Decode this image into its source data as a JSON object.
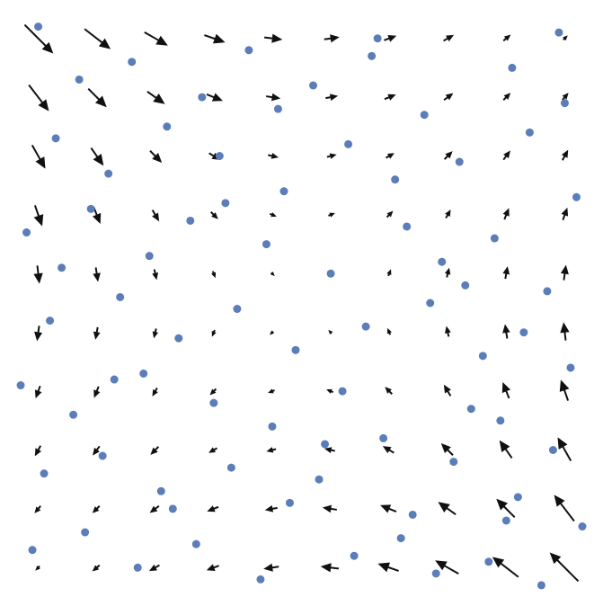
{
  "chart_data": [
    {
      "type": "quiver",
      "color": "#111111",
      "xlim": [
        0,
        1
      ],
      "ylim": [
        0,
        1
      ],
      "x": [
        0.05,
        0.15,
        0.25,
        0.35,
        0.45,
        0.55,
        0.65,
        0.75,
        0.85,
        0.95
      ],
      "y": [
        0.05,
        0.15,
        0.25,
        0.35,
        0.45,
        0.55,
        0.65,
        0.75,
        0.85,
        0.95
      ],
      "u": [
        [
          -0.003,
          -0.006,
          -0.009,
          -0.011,
          -0.014,
          -0.017,
          -0.02,
          -0.023,
          -0.026,
          -0.029
        ],
        [
          -0.005,
          -0.006,
          -0.008,
          -0.01,
          -0.011,
          -0.013,
          -0.015,
          -0.017,
          -0.018,
          -0.02
        ],
        [
          -0.005,
          -0.006,
          -0.007,
          -0.007,
          -0.008,
          -0.009,
          -0.01,
          -0.011,
          -0.012,
          -0.013
        ],
        [
          -0.004,
          -0.004,
          -0.004,
          -0.005,
          -0.005,
          -0.005,
          -0.006,
          -0.006,
          -0.006,
          -0.007
        ],
        [
          -0.002,
          -0.002,
          -0.002,
          -0.002,
          -0.002,
          -0.002,
          -0.002,
          -0.002,
          -0.002,
          -0.002
        ],
        [
          0.002,
          0.002,
          0.002,
          0.002,
          0.002,
          0.002,
          0.002,
          0.002,
          0.002,
          0.002
        ],
        [
          0.007,
          0.006,
          0.006,
          0.006,
          0.005,
          0.005,
          0.005,
          0.004,
          0.004,
          0.004
        ],
        [
          0.013,
          0.012,
          0.011,
          0.01,
          0.009,
          0.008,
          0.007,
          0.007,
          0.006,
          0.005
        ],
        [
          0.02,
          0.018,
          0.017,
          0.015,
          0.013,
          0.011,
          0.01,
          0.008,
          0.006,
          0.005
        ],
        [
          0.029,
          0.026,
          0.023,
          0.02,
          0.017,
          0.014,
          0.011,
          0.009,
          0.006,
          0.003
        ]
      ],
      "v": [
        [
          -0.003,
          -0.005,
          -0.005,
          -0.004,
          -0.002,
          0.002,
          0.007,
          0.013,
          0.02,
          0.029
        ],
        [
          -0.006,
          -0.006,
          -0.006,
          -0.004,
          -0.002,
          0.002,
          0.006,
          0.012,
          0.018,
          0.026
        ],
        [
          -0.009,
          -0.008,
          -0.007,
          -0.004,
          -0.002,
          0.002,
          0.006,
          0.011,
          0.017,
          0.023
        ],
        [
          -0.011,
          -0.01,
          -0.007,
          -0.005,
          -0.002,
          0.002,
          0.006,
          0.01,
          0.015,
          0.02
        ],
        [
          -0.014,
          -0.011,
          -0.008,
          -0.005,
          -0.002,
          0.002,
          0.005,
          0.009,
          0.013,
          0.017
        ],
        [
          -0.017,
          -0.013,
          -0.009,
          -0.005,
          -0.002,
          0.002,
          0.005,
          0.008,
          0.011,
          0.014
        ],
        [
          -0.02,
          -0.015,
          -0.01,
          -0.006,
          -0.002,
          0.002,
          0.005,
          0.007,
          0.01,
          0.011
        ],
        [
          -0.023,
          -0.017,
          -0.011,
          -0.006,
          -0.002,
          0.002,
          0.004,
          0.007,
          0.008,
          0.009
        ],
        [
          -0.026,
          -0.018,
          -0.012,
          -0.006,
          -0.002,
          0.002,
          0.004,
          0.006,
          0.006,
          0.006
        ],
        [
          -0.029,
          -0.02,
          -0.013,
          -0.007,
          -0.002,
          0.002,
          0.004,
          0.005,
          0.005,
          0.003
        ]
      ]
    },
    {
      "type": "scatter",
      "color": "#5b7db8",
      "xlim": [
        0,
        1
      ],
      "ylim": [
        0,
        1
      ],
      "x": [
        0.05,
        0.12,
        0.21,
        0.33,
        0.41,
        0.52,
        0.63,
        0.71,
        0.86,
        0.94,
        0.08,
        0.17,
        0.27,
        0.36,
        0.47,
        0.58,
        0.66,
        0.77,
        0.89,
        0.97,
        0.03,
        0.14,
        0.24,
        0.31,
        0.44,
        0.55,
        0.68,
        0.74,
        0.83,
        0.92,
        0.07,
        0.19,
        0.29,
        0.39,
        0.49,
        0.61,
        0.72,
        0.81,
        0.88,
        0.96,
        0.02,
        0.11,
        0.23,
        0.35,
        0.45,
        0.57,
        0.64,
        0.79,
        0.84,
        0.93,
        0.06,
        0.16,
        0.26,
        0.38,
        0.48,
        0.53,
        0.69,
        0.76,
        0.87,
        0.98,
        0.04,
        0.13,
        0.22,
        0.32,
        0.43,
        0.59,
        0.67,
        0.73,
        0.82,
        0.91,
        0.09,
        0.18,
        0.28,
        0.37,
        0.46,
        0.54,
        0.62,
        0.78,
        0.85,
        0.95
      ],
      "y": [
        0.97,
        0.88,
        0.91,
        0.85,
        0.93,
        0.87,
        0.95,
        0.82,
        0.9,
        0.96,
        0.78,
        0.72,
        0.8,
        0.75,
        0.69,
        0.77,
        0.71,
        0.74,
        0.79,
        0.68,
        0.62,
        0.66,
        0.58,
        0.64,
        0.6,
        0.55,
        0.63,
        0.57,
        0.61,
        0.52,
        0.47,
        0.51,
        0.44,
        0.49,
        0.42,
        0.46,
        0.5,
        0.41,
        0.45,
        0.39,
        0.36,
        0.31,
        0.38,
        0.33,
        0.29,
        0.35,
        0.27,
        0.32,
        0.3,
        0.25,
        0.21,
        0.24,
        0.18,
        0.22,
        0.16,
        0.2,
        0.14,
        0.23,
        0.17,
        0.12,
        0.08,
        0.11,
        0.05,
        0.09,
        0.03,
        0.07,
        0.1,
        0.04,
        0.06,
        0.02,
        0.56,
        0.37,
        0.15,
        0.67,
        0.83,
        0.26,
        0.92,
        0.53,
        0.13,
        0.84
      ]
    }
  ]
}
